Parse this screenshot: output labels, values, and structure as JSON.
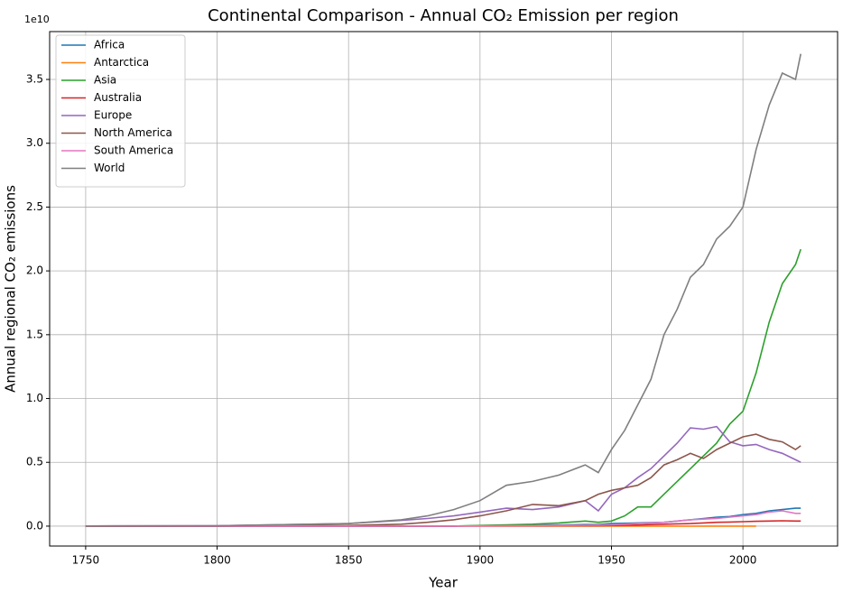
{
  "chart_data": {
    "type": "line",
    "title": "Continental Comparison - Annual CO₂ Emission per region",
    "xlabel": "Year",
    "ylabel": "Annual regional CO₂ emissions",
    "y_offset_label": "1e10",
    "x": [
      1750,
      1800,
      1850,
      1870,
      1880,
      1890,
      1900,
      1910,
      1920,
      1930,
      1940,
      1945,
      1950,
      1955,
      1960,
      1965,
      1970,
      1975,
      1980,
      1985,
      1990,
      1995,
      2000,
      2005,
      2010,
      2015,
      2020,
      2022
    ],
    "series": [
      {
        "name": "Africa",
        "color": "#1f77b4",
        "values": [
          0,
          0,
          0,
          0,
          0,
          0,
          0.003,
          0.005,
          0.007,
          0.009,
          0.012,
          0.012,
          0.02,
          0.022,
          0.025,
          0.028,
          0.03,
          0.04,
          0.05,
          0.06,
          0.07,
          0.075,
          0.09,
          0.1,
          0.12,
          0.13,
          0.14,
          0.14
        ]
      },
      {
        "name": "Antarctica",
        "color": "#ff7f0e",
        "values": [
          0,
          0,
          0,
          0,
          0,
          0,
          0,
          0,
          0,
          0,
          0,
          0,
          0,
          0,
          0,
          0,
          0,
          0,
          0,
          0,
          0,
          0,
          0,
          0,
          null,
          null,
          null,
          null
        ]
      },
      {
        "name": "Asia",
        "color": "#2ca02c",
        "values": [
          0,
          0,
          0,
          0,
          0,
          0,
          0.005,
          0.01,
          0.015,
          0.025,
          0.04,
          0.03,
          0.04,
          0.08,
          0.15,
          0.15,
          0.25,
          0.35,
          0.45,
          0.55,
          0.65,
          0.8,
          0.9,
          1.2,
          1.6,
          1.9,
          2.05,
          2.17
        ]
      },
      {
        "name": "Australia",
        "color": "#d62728",
        "values": [
          0,
          0,
          0,
          0,
          0,
          0,
          0.001,
          0.002,
          0.002,
          0.003,
          0.004,
          0.004,
          0.005,
          0.007,
          0.009,
          0.012,
          0.015,
          0.018,
          0.02,
          0.025,
          0.03,
          0.032,
          0.035,
          0.038,
          0.04,
          0.042,
          0.04,
          0.04
        ]
      },
      {
        "name": "Europe",
        "color": "#9467bd",
        "values": [
          0.001,
          0.003,
          0.02,
          0.045,
          0.06,
          0.08,
          0.11,
          0.14,
          0.13,
          0.15,
          0.2,
          0.12,
          0.25,
          0.3,
          0.38,
          0.45,
          0.55,
          0.65,
          0.77,
          0.76,
          0.78,
          0.66,
          0.63,
          0.64,
          0.6,
          0.57,
          0.52,
          0.5
        ]
      },
      {
        "name": "North America",
        "color": "#8c564b",
        "values": [
          0,
          0,
          0.005,
          0.015,
          0.03,
          0.05,
          0.08,
          0.12,
          0.17,
          0.16,
          0.2,
          0.25,
          0.28,
          0.3,
          0.32,
          0.38,
          0.48,
          0.52,
          0.57,
          0.53,
          0.6,
          0.65,
          0.7,
          0.72,
          0.68,
          0.66,
          0.6,
          0.63
        ]
      },
      {
        "name": "South America",
        "color": "#e377c2",
        "values": [
          0,
          0,
          0,
          0,
          0,
          0,
          0.002,
          0.003,
          0.004,
          0.005,
          0.007,
          0.008,
          0.01,
          0.015,
          0.02,
          0.025,
          0.03,
          0.04,
          0.05,
          0.055,
          0.06,
          0.07,
          0.08,
          0.09,
          0.11,
          0.12,
          0.1,
          0.1
        ]
      },
      {
        "name": "World",
        "color": "#7f7f7f",
        "values": [
          0.001,
          0.003,
          0.02,
          0.05,
          0.08,
          0.13,
          0.2,
          0.32,
          0.35,
          0.4,
          0.48,
          0.42,
          0.6,
          0.75,
          0.95,
          1.15,
          1.5,
          1.7,
          1.95,
          2.05,
          2.25,
          2.35,
          2.5,
          2.95,
          3.3,
          3.55,
          3.5,
          3.7
        ]
      }
    ],
    "xlim": [
      1736.3,
      2036
    ],
    "xticks": [
      1750,
      1800,
      1850,
      1900,
      1950,
      2000
    ],
    "ylim": [
      -0.156,
      3.875
    ],
    "yticks": [
      {
        "value": 0,
        "label": "0.0"
      },
      0.5,
      {
        "value": 1,
        "label": "1.0"
      },
      1.5,
      {
        "value": 2,
        "label": "2.0"
      },
      2.5,
      {
        "value": 3,
        "label": "3.0"
      },
      3.5
    ],
    "grid": true,
    "legend": "upper left"
  }
}
